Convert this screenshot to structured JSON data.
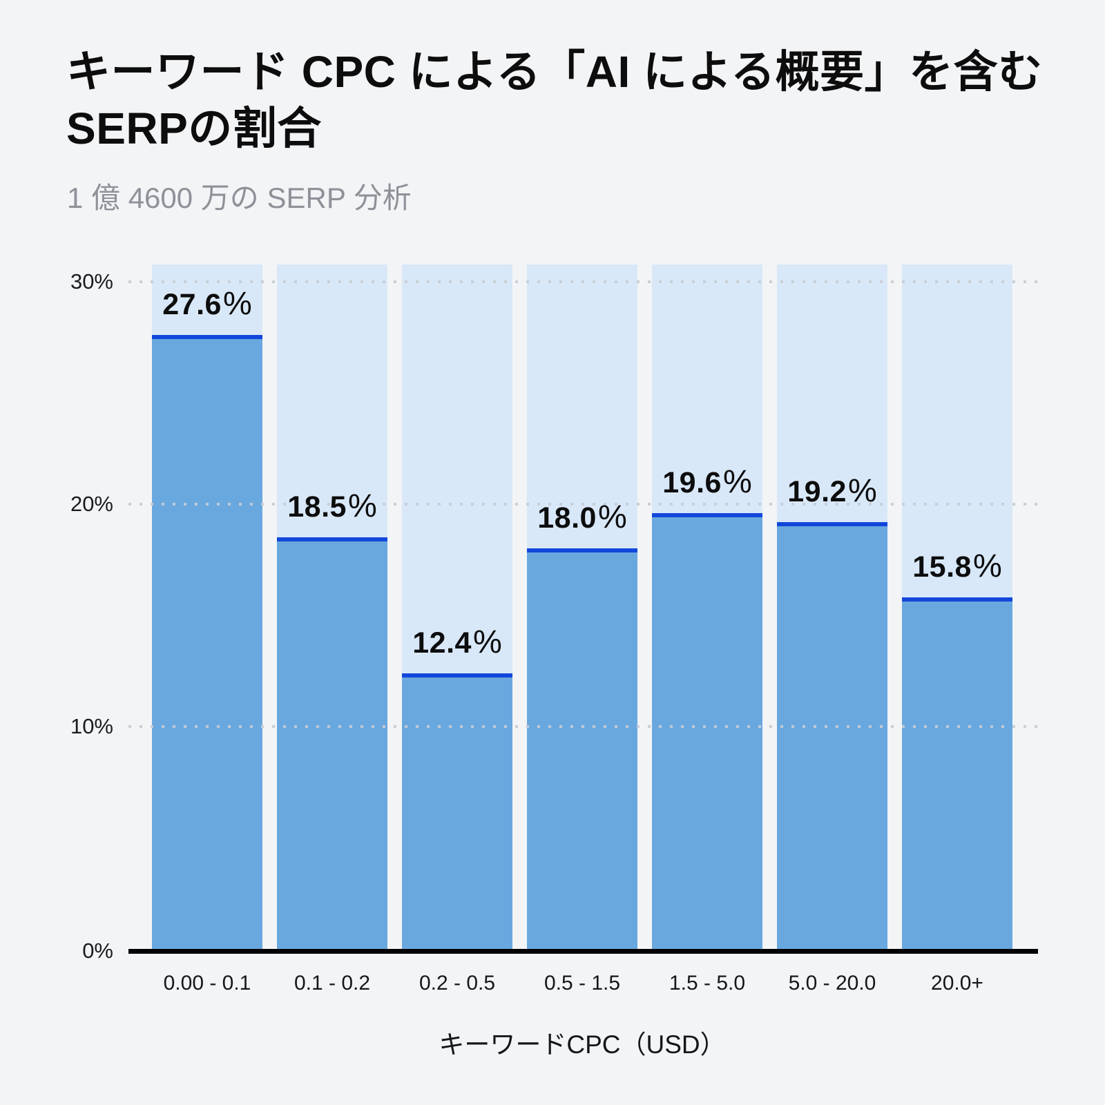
{
  "header": {
    "title": "キーワード CPC による「AI による概要」を含むSERPの割合",
    "subtitle": "1 億 4600 万の SERP 分析"
  },
  "chart_data": {
    "type": "bar",
    "title": "キーワード CPC による「AI による概要」を含むSERPの割合",
    "subtitle": "1 億 4600 万の SERP 分析",
    "categories": [
      "0.00 - 0.1",
      "0.1 - 0.2",
      "0.2 - 0.5",
      "0.5 - 1.5",
      "1.5 - 5.0",
      "5.0 - 20.0",
      "20.0+"
    ],
    "values": [
      27.6,
      18.5,
      12.4,
      18.0,
      19.6,
      19.2,
      15.8
    ],
    "value_labels": [
      "27.6",
      "18.5",
      "12.4",
      "18.0",
      "19.6",
      "19.2",
      "15.8"
    ],
    "value_suffix": "%",
    "xlabel": "キーワードCPC（USD）",
    "ylabel": "",
    "ylim": [
      0,
      30
    ],
    "y_ticks": [
      {
        "label": "30%",
        "value": 30
      },
      {
        "label": "20%",
        "value": 20
      },
      {
        "label": "10%",
        "value": 10
      },
      {
        "label": "0%",
        "value": 0
      }
    ],
    "grid": "horizontal-dotted",
    "legend": "none"
  },
  "colors": {
    "background": "#F2F4F6",
    "bar_fill": "#69A8DF",
    "bar_track": "#D9E8F8",
    "bar_top_line": "#1247DB",
    "axis_line": "#000000",
    "grid_dot": "#C7CCD4",
    "title_text": "#0D0D0E",
    "subtitle_text": "#8E9298",
    "tick_text": "#1A1B1E",
    "category_text": "#15161A"
  }
}
